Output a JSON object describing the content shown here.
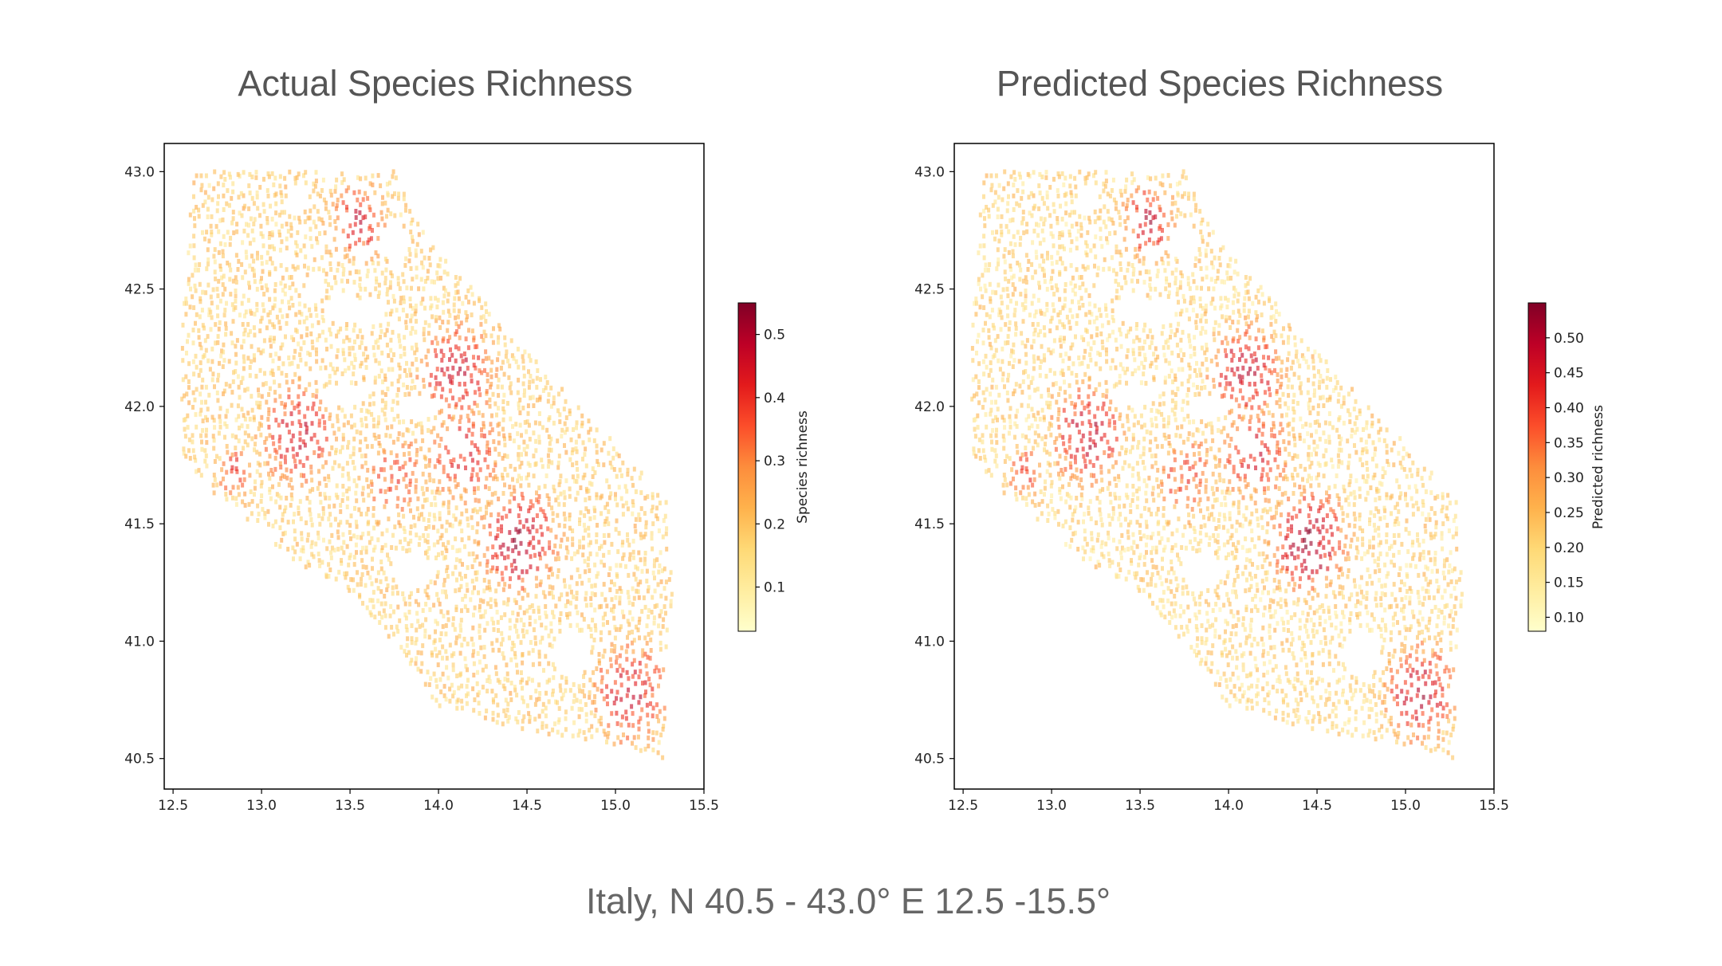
{
  "caption": "Italy, N 40.5 - 43.0°  E 12.5 -15.5°",
  "colormap": [
    "#ffffcc",
    "#ffeda0",
    "#fed976",
    "#feb24c",
    "#fd8d3c",
    "#fc4e2a",
    "#e31a1c",
    "#bd0026",
    "#800026"
  ],
  "point_alpha": 0.6,
  "chart_data": [
    {
      "type": "scatter",
      "title": "Actual Species Richness",
      "xlabel": "",
      "ylabel": "",
      "xlim": [
        12.45,
        15.5
      ],
      "ylim": [
        40.37,
        43.12
      ],
      "x_ticks": [
        "12.5",
        "13.0",
        "13.5",
        "14.0",
        "14.5",
        "15.0",
        "15.5"
      ],
      "y_ticks": [
        "40.5",
        "41.0",
        "41.5",
        "42.0",
        "42.5",
        "43.0"
      ],
      "colorbar": {
        "label": "Species richness",
        "range": [
          0.03,
          0.55
        ],
        "ticks": [
          "0.1",
          "0.2",
          "0.3",
          "0.4",
          "0.5"
        ]
      },
      "value_offset": 0.0
    },
    {
      "type": "scatter",
      "title": "Predicted Species Richness",
      "xlabel": "",
      "ylabel": "",
      "xlim": [
        12.45,
        15.5
      ],
      "ylim": [
        40.37,
        43.12
      ],
      "x_ticks": [
        "12.5",
        "13.0",
        "13.5",
        "14.0",
        "14.5",
        "15.0",
        "15.5"
      ],
      "y_ticks": [
        "40.5",
        "41.0",
        "41.5",
        "42.0",
        "42.5",
        "43.0"
      ],
      "colorbar": {
        "label": "Predicted richness",
        "range": [
          0.08,
          0.55
        ],
        "ticks": [
          "0.10",
          "0.15",
          "0.20",
          "0.25",
          "0.30",
          "0.35",
          "0.40",
          "0.45",
          "0.50"
        ]
      },
      "value_offset": 0.02
    }
  ],
  "field": {
    "boundary": [
      [
        12.62,
        43.0
      ],
      [
        13.75,
        43.0
      ],
      [
        13.95,
        42.7
      ],
      [
        14.2,
        42.5
      ],
      [
        14.55,
        42.2
      ],
      [
        14.8,
        42.0
      ],
      [
        15.05,
        41.8
      ],
      [
        15.3,
        41.6
      ],
      [
        15.32,
        41.2
      ],
      [
        15.28,
        40.9
      ],
      [
        15.28,
        40.5
      ],
      [
        15.0,
        40.56
      ],
      [
        14.6,
        40.6
      ],
      [
        14.25,
        40.67
      ],
      [
        14.0,
        40.72
      ],
      [
        13.8,
        40.95
      ],
      [
        13.5,
        41.2
      ],
      [
        13.2,
        41.33
      ],
      [
        12.95,
        41.5
      ],
      [
        12.7,
        41.65
      ],
      [
        12.55,
        41.8
      ],
      [
        12.55,
        42.3
      ],
      [
        12.57,
        42.6
      ]
    ],
    "holes": [
      {
        "x": 13.45,
        "y": 42.42,
        "rx": 0.08,
        "ry": 0.06
      },
      {
        "x": 13.6,
        "y": 42.4,
        "rx": 0.1,
        "ry": 0.05
      },
      {
        "x": 13.45,
        "y": 42.05,
        "rx": 0.13,
        "ry": 0.05
      },
      {
        "x": 13.9,
        "y": 42.0,
        "rx": 0.12,
        "ry": 0.05
      },
      {
        "x": 13.2,
        "y": 42.88,
        "rx": 0.06,
        "ry": 0.06
      },
      {
        "x": 13.3,
        "y": 42.5,
        "rx": 0.05,
        "ry": 0.05
      },
      {
        "x": 13.75,
        "y": 42.7,
        "rx": 0.08,
        "ry": 0.08
      },
      {
        "x": 14.1,
        "y": 41.85,
        "rx": 0.06,
        "ry": 0.05
      },
      {
        "x": 12.85,
        "y": 41.42,
        "rx": 0.22,
        "ry": 0.1
      },
      {
        "x": 13.85,
        "y": 41.3,
        "rx": 0.12,
        "ry": 0.08
      },
      {
        "x": 14.75,
        "y": 40.95,
        "rx": 0.1,
        "ry": 0.1
      }
    ],
    "hotspots": [
      {
        "x": 14.45,
        "y": 41.42,
        "s": 0.2,
        "v": 0.5
      },
      {
        "x": 13.2,
        "y": 41.88,
        "s": 0.2,
        "v": 0.45
      },
      {
        "x": 15.08,
        "y": 40.78,
        "s": 0.2,
        "v": 0.45
      },
      {
        "x": 13.55,
        "y": 42.78,
        "s": 0.15,
        "v": 0.45
      },
      {
        "x": 14.1,
        "y": 42.15,
        "s": 0.2,
        "v": 0.45
      },
      {
        "x": 14.15,
        "y": 41.8,
        "s": 0.2,
        "v": 0.42
      },
      {
        "x": 12.85,
        "y": 41.72,
        "s": 0.1,
        "v": 0.4
      },
      {
        "x": 13.75,
        "y": 41.7,
        "s": 0.2,
        "v": 0.35
      }
    ],
    "base_value": 0.18
  }
}
